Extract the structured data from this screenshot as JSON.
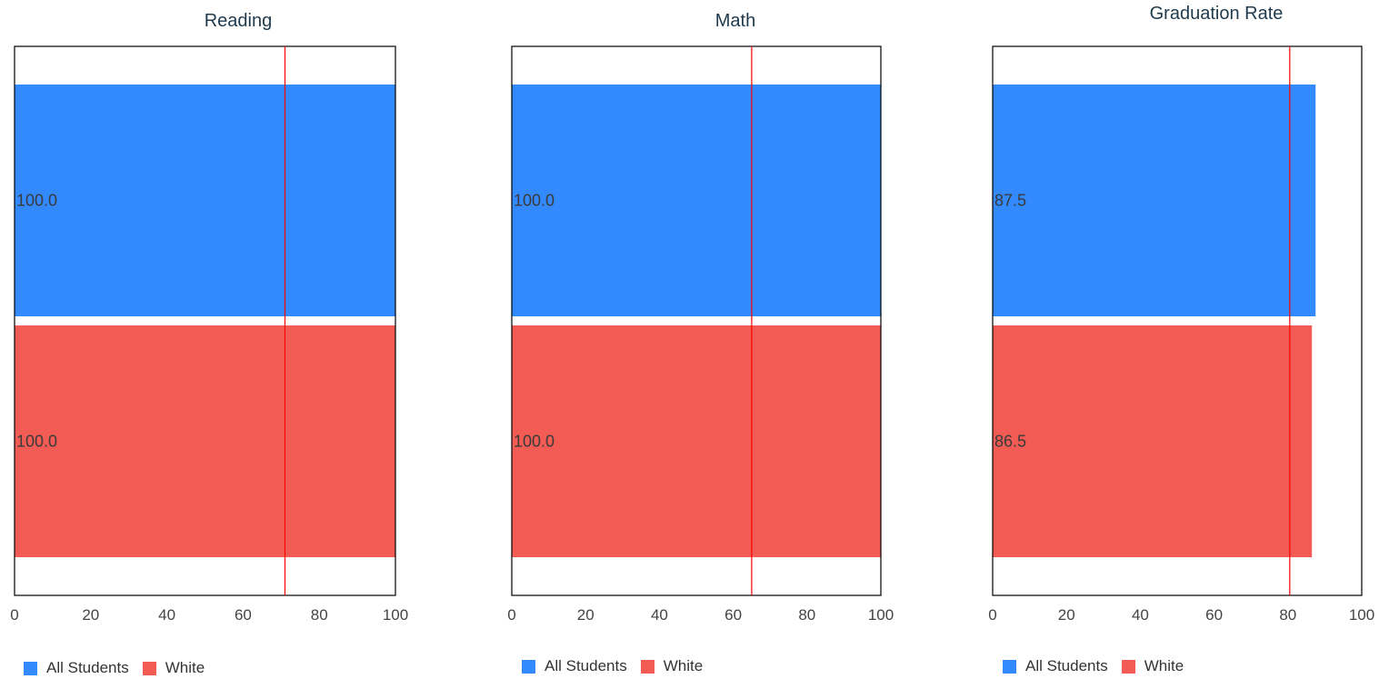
{
  "legend": {
    "items": [
      {
        "label": "All Students",
        "color": "#338AFF"
      },
      {
        "label": "White",
        "color": "#F25C54"
      }
    ]
  },
  "chart_data": [
    {
      "type": "bar",
      "orientation": "horizontal",
      "title": "Reading",
      "categories": [
        "All Students",
        "White"
      ],
      "values": [
        100.0,
        100.0
      ],
      "value_labels": [
        "100.0",
        "100.0"
      ],
      "xlim": [
        0,
        100
      ],
      "xticks": [
        "0",
        "20",
        "40",
        "60",
        "80",
        "100"
      ],
      "reference_line": 71,
      "reference_color": "#FF0000"
    },
    {
      "type": "bar",
      "orientation": "horizontal",
      "title": "Math",
      "categories": [
        "All Students",
        "White"
      ],
      "values": [
        100.0,
        100.0
      ],
      "value_labels": [
        "100.0",
        "100.0"
      ],
      "xlim": [
        0,
        100
      ],
      "xticks": [
        "0",
        "20",
        "40",
        "60",
        "80",
        "100"
      ],
      "reference_line": 65,
      "reference_color": "#FF0000"
    },
    {
      "type": "bar",
      "orientation": "horizontal",
      "title": "Graduation Rate",
      "categories": [
        "All Students",
        "White"
      ],
      "values": [
        87.5,
        86.5
      ],
      "value_labels": [
        "87.5",
        "86.5"
      ],
      "xlim": [
        0,
        100
      ],
      "xticks": [
        "0",
        "20",
        "40",
        "60",
        "80",
        "100"
      ],
      "reference_line": 80.5,
      "reference_color": "#FF0000"
    }
  ]
}
